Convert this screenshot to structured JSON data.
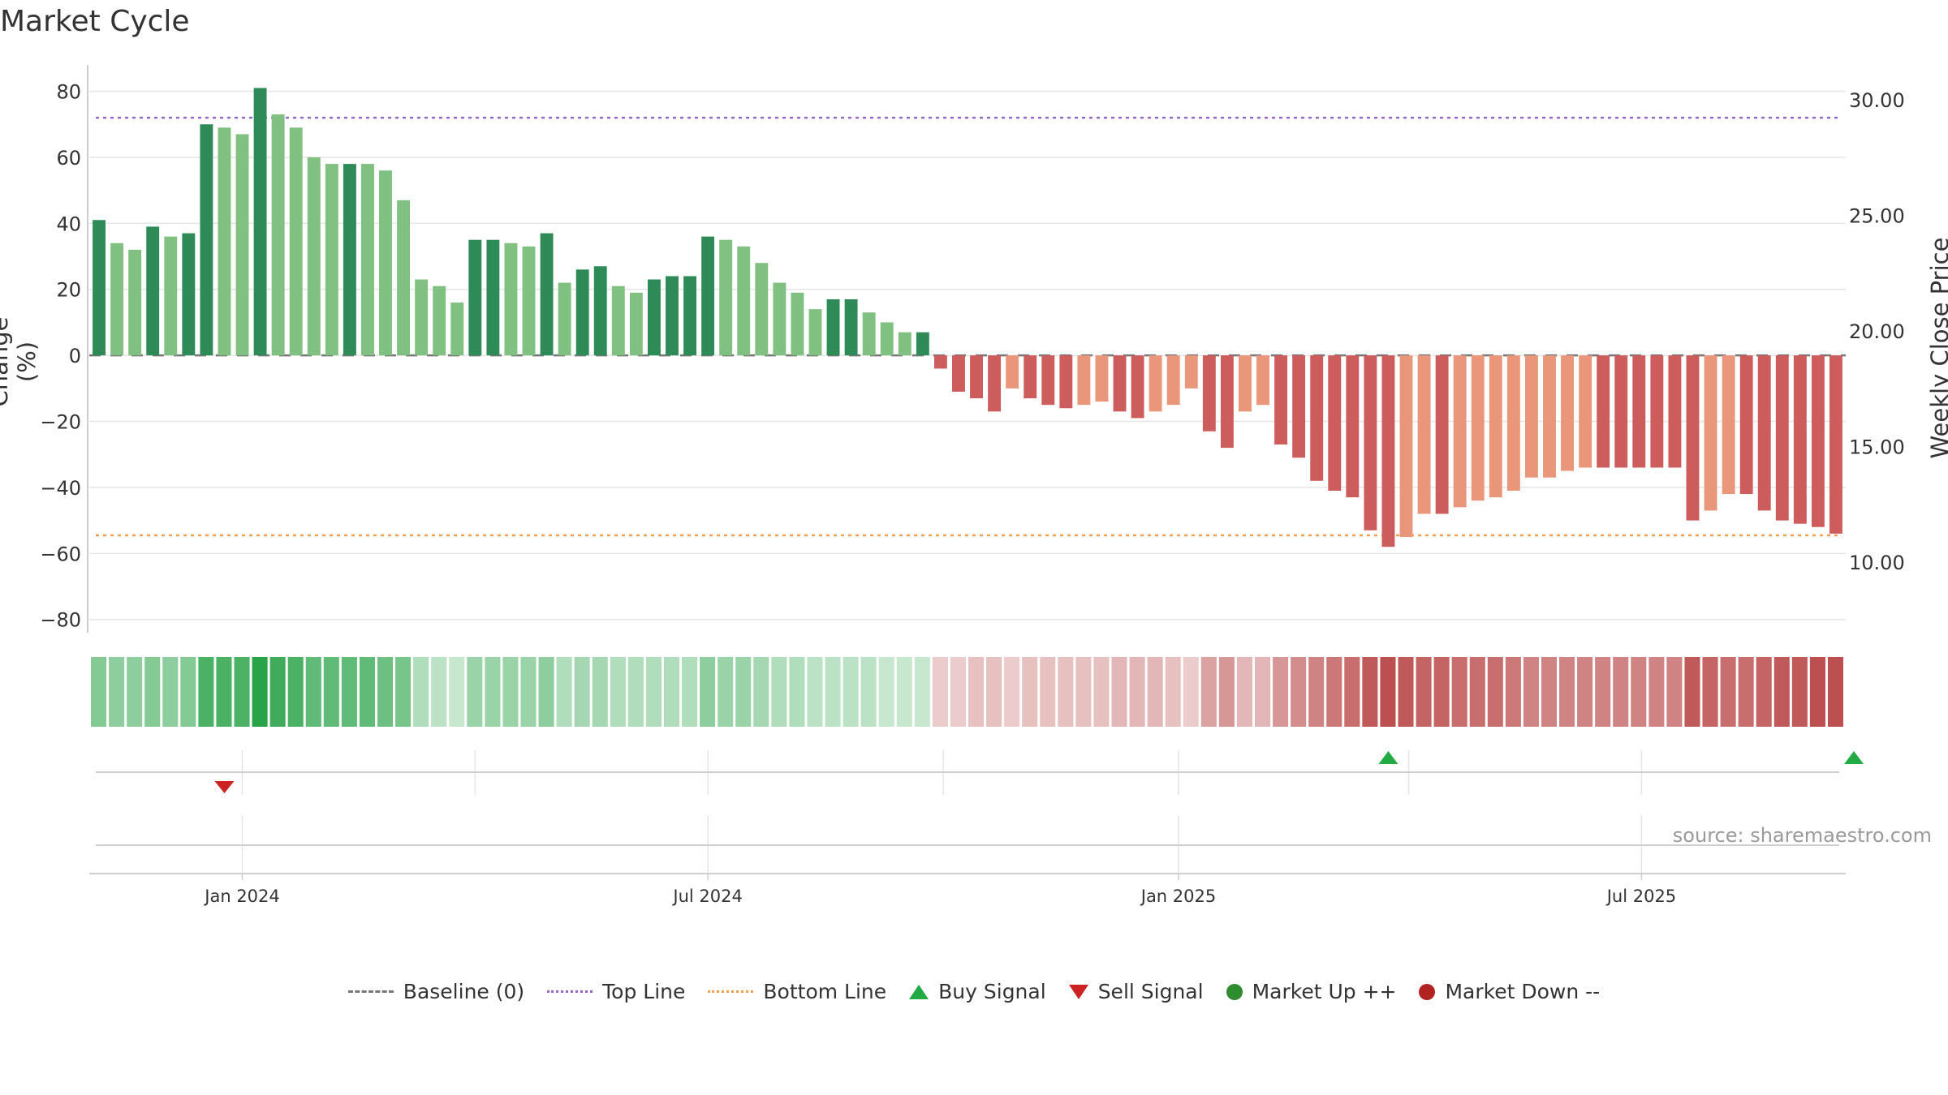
{
  "title": "Market Cycle",
  "ylabel_left": "Change (%)",
  "ylabel_right": "Weekly Close Price",
  "source": "source: sharemaestro.com",
  "legend": {
    "baseline": "Baseline (0)",
    "top_line": "Top Line",
    "bottom_line": "Bottom Line",
    "buy": "Buy Signal",
    "sell": "Sell Signal",
    "market_up": "Market Up ++",
    "market_down": "Market Down --"
  },
  "chart_data": {
    "type": "bar",
    "title": "Market Cycle",
    "ylabel": "Change (%)",
    "y2label": "Weekly Close Price",
    "ylim": [
      -84,
      88
    ],
    "y2lim": [
      6.94,
      31.5
    ],
    "yticks": [
      80,
      60,
      40,
      20,
      0,
      -20,
      -40,
      -60,
      -80
    ],
    "ytick_labels": [
      "80",
      "60",
      "40",
      "20",
      "0",
      "−20",
      "−40",
      "−60",
      "−80"
    ],
    "y2ticks": [
      30,
      25,
      20,
      15,
      10
    ],
    "y2tick_labels": [
      "30.00",
      "25.00",
      "20.00",
      "15.00",
      "10.00"
    ],
    "x_start": "2023-11-06",
    "x_step_days": 7,
    "xticks": [
      {
        "label": "Jan 2024",
        "date": "2024-01-01"
      },
      {
        "label": "Jul 2024",
        "date": "2024-07-01"
      },
      {
        "label": "Jan 2025",
        "date": "2025-01-01"
      },
      {
        "label": "Jul 2025",
        "date": "2025-07-01"
      }
    ],
    "reference_lines": {
      "baseline": 0,
      "top_line": 72,
      "bottom_line": -54.5
    },
    "values": [
      41,
      34,
      32,
      39,
      36,
      37,
      70,
      69,
      67,
      81,
      73,
      69,
      60,
      58,
      58,
      58,
      56,
      47,
      23,
      21,
      16,
      35,
      35,
      34,
      33,
      37,
      22,
      26,
      27,
      21,
      19,
      23,
      24,
      24,
      36,
      35,
      33,
      28,
      22,
      19,
      14,
      17,
      17,
      13,
      10,
      7,
      7,
      -4,
      -11,
      -13,
      -17,
      -10,
      -13,
      -15,
      -16,
      -15,
      -14,
      -17,
      -19,
      -17,
      -15,
      -10,
      -23,
      -28,
      -17,
      -15,
      -27,
      -31,
      -38,
      -41,
      -43,
      -53,
      -58,
      -55,
      -48,
      -48,
      -46,
      -44,
      -43,
      -41,
      -37,
      -37,
      -35,
      -34,
      -34,
      -34,
      -34,
      -34,
      -34,
      -50,
      -47,
      -42,
      -42,
      -47,
      -50,
      -51,
      -52,
      -54
    ],
    "strong": [
      1,
      0,
      0,
      1,
      0,
      1,
      1,
      0,
      0,
      1,
      0,
      0,
      0,
      0,
      1,
      0,
      0,
      0,
      0,
      0,
      0,
      1,
      1,
      0,
      0,
      1,
      0,
      1,
      1,
      0,
      0,
      1,
      1,
      1,
      1,
      0,
      0,
      0,
      0,
      0,
      0,
      1,
      1,
      0,
      0,
      0,
      1,
      1,
      1,
      1,
      1,
      0,
      1,
      1,
      1,
      0,
      0,
      1,
      1,
      0,
      0,
      0,
      1,
      1,
      0,
      0,
      1,
      1,
      1,
      1,
      1,
      1,
      1,
      0,
      0,
      1,
      0,
      0,
      0,
      0,
      0,
      0,
      0,
      0,
      1,
      1,
      1,
      1,
      1,
      1,
      0,
      0,
      1,
      1,
      1,
      1,
      1,
      1
    ],
    "heatmap_intensity": [
      0.55,
      0.5,
      0.5,
      0.55,
      0.5,
      0.55,
      0.8,
      0.8,
      0.8,
      0.95,
      0.85,
      0.8,
      0.7,
      0.7,
      0.7,
      0.7,
      0.65,
      0.6,
      0.35,
      0.3,
      0.25,
      0.45,
      0.45,
      0.45,
      0.45,
      0.5,
      0.35,
      0.4,
      0.4,
      0.35,
      0.35,
      0.35,
      0.35,
      0.35,
      0.5,
      0.45,
      0.45,
      0.4,
      0.35,
      0.35,
      0.3,
      0.3,
      0.3,
      0.3,
      0.25,
      0.25,
      0.25,
      0.25,
      0.25,
      0.3,
      0.3,
      0.25,
      0.3,
      0.3,
      0.3,
      0.3,
      0.3,
      0.35,
      0.35,
      0.35,
      0.3,
      0.25,
      0.45,
      0.5,
      0.35,
      0.35,
      0.5,
      0.55,
      0.6,
      0.65,
      0.7,
      0.8,
      0.85,
      0.8,
      0.75,
      0.75,
      0.7,
      0.7,
      0.7,
      0.65,
      0.6,
      0.6,
      0.6,
      0.6,
      0.6,
      0.6,
      0.6,
      0.6,
      0.6,
      0.8,
      0.75,
      0.7,
      0.7,
      0.75,
      0.8,
      0.8,
      0.85,
      0.85
    ],
    "buy_signals": [
      "2025-03-24",
      "2025-09-22"
    ],
    "sell_signals": [
      "2023-12-25"
    ],
    "colors": {
      "pos_strong": "#2e8b57",
      "pos_weak": "#80c080",
      "neg_strong": "#cd5c5c",
      "neg_weak": "#e9967a",
      "top_line": "#9966cc",
      "bottom_line": "#f0a050",
      "buy": "#22aa44",
      "sell": "#cc2222",
      "market_up": "#2e8b2e",
      "market_down": "#b22222"
    }
  }
}
